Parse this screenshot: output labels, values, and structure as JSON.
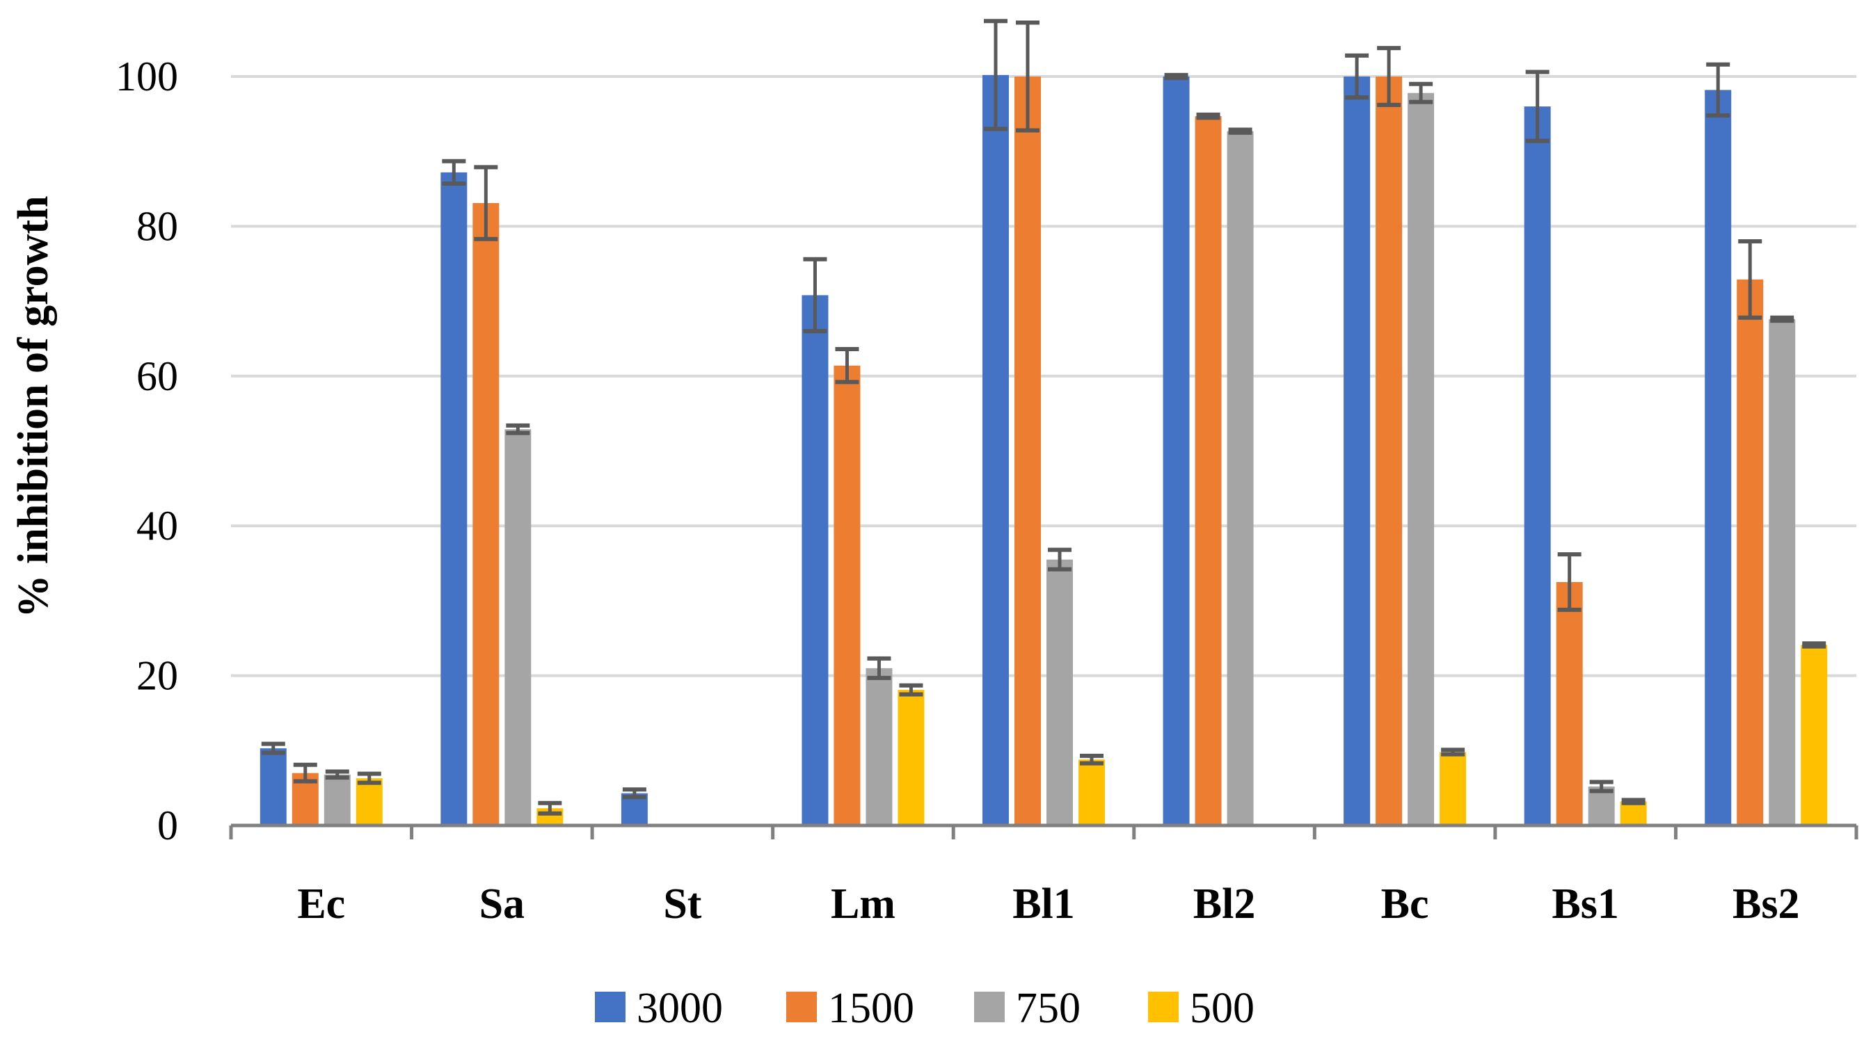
{
  "chart_data": {
    "type": "bar",
    "title": "",
    "xlabel": "",
    "ylabel": "% inhibition of growth",
    "ylim": [
      0,
      100
    ],
    "yticks": [
      0,
      20,
      40,
      60,
      80,
      100
    ],
    "grid": true,
    "legend_position": "bottom",
    "categories": [
      "Ec",
      "Sa",
      "St",
      "Lm",
      "Bl1",
      "Bl2",
      "Bc",
      "Bs1",
      "Bs2"
    ],
    "series": [
      {
        "name": "3000",
        "color": "#4472C4",
        "values": [
          10.3,
          87.2,
          4.3,
          70.8,
          100.2,
          100,
          100,
          96,
          98.2
        ],
        "errors": [
          0.6,
          1.5,
          0.5,
          4.8,
          7.2,
          0.2,
          2.8,
          4.6,
          3.4
        ]
      },
      {
        "name": "1500",
        "color": "#ED7D31",
        "values": [
          7,
          83.1,
          0,
          61.4,
          100,
          94.7,
          100,
          32.5,
          72.9
        ],
        "errors": [
          1.1,
          4.8,
          0,
          2.2,
          7.2,
          0.2,
          3.8,
          3.7,
          5.1
        ]
      },
      {
        "name": "750",
        "color": "#A5A5A5",
        "values": [
          6.8,
          52.9,
          0,
          21,
          35.5,
          92.7,
          97.8,
          5.2,
          67.6
        ],
        "errors": [
          0.4,
          0.5,
          0,
          1.3,
          1.3,
          0.2,
          1.2,
          0.6,
          0.2
        ]
      },
      {
        "name": "500",
        "color": "#FFC000",
        "values": [
          6.3,
          2.3,
          0,
          18.1,
          8.8,
          0,
          9.8,
          3.2,
          24.1
        ],
        "errors": [
          0.6,
          0.7,
          0,
          0.6,
          0.5,
          0,
          0.3,
          0.2,
          0.2
        ]
      }
    ]
  }
}
